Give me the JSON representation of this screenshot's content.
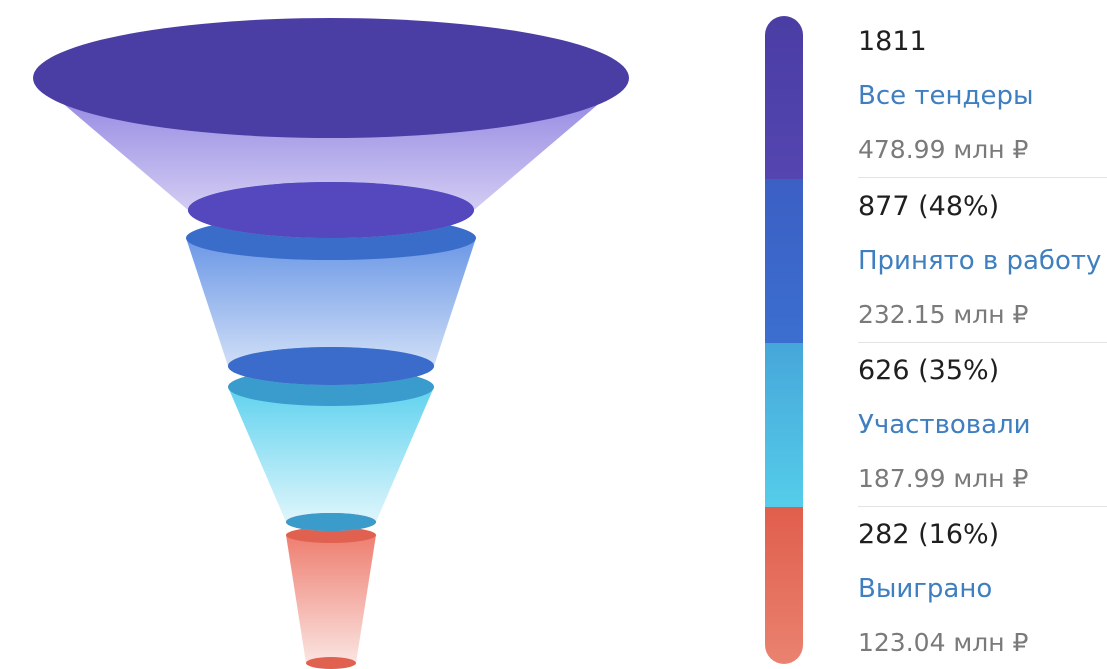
{
  "chart_data": {
    "type": "funnel",
    "stages": [
      {
        "count": "1811",
        "label": "Все тендеры",
        "amount": "478.99 млн ₽",
        "value": 1811,
        "color": "#4a3da4",
        "fill_top": "#8b7fe0",
        "fill_bottom": "#e2ddf7",
        "cap_color": "#5a49c0"
      },
      {
        "count": "877 (48%)",
        "label": "Принято в работу",
        "amount": "232.15 млн ₽",
        "value": 877,
        "color": "#3a64c8",
        "fill_top": "#6a97e6",
        "fill_bottom": "#dfe9f9",
        "cap_color": "#3a6cc9"
      },
      {
        "count": "626 (35%)",
        "label": "Участвовали",
        "amount": "187.99 млн ₽",
        "value": 626,
        "color": "#45bfe6",
        "fill_top": "#5fd2ee",
        "fill_bottom": "#e7f8fd",
        "cap_color": "#3a9ccc"
      },
      {
        "count": "282 (16%)",
        "label": "Выиграно",
        "amount": "123.04 млн ₽",
        "value": 282,
        "color": "#e56a56",
        "fill_top": "#ee7e70",
        "fill_bottom": "#fbe9e6",
        "cap_color": "#e0614f"
      }
    ]
  }
}
